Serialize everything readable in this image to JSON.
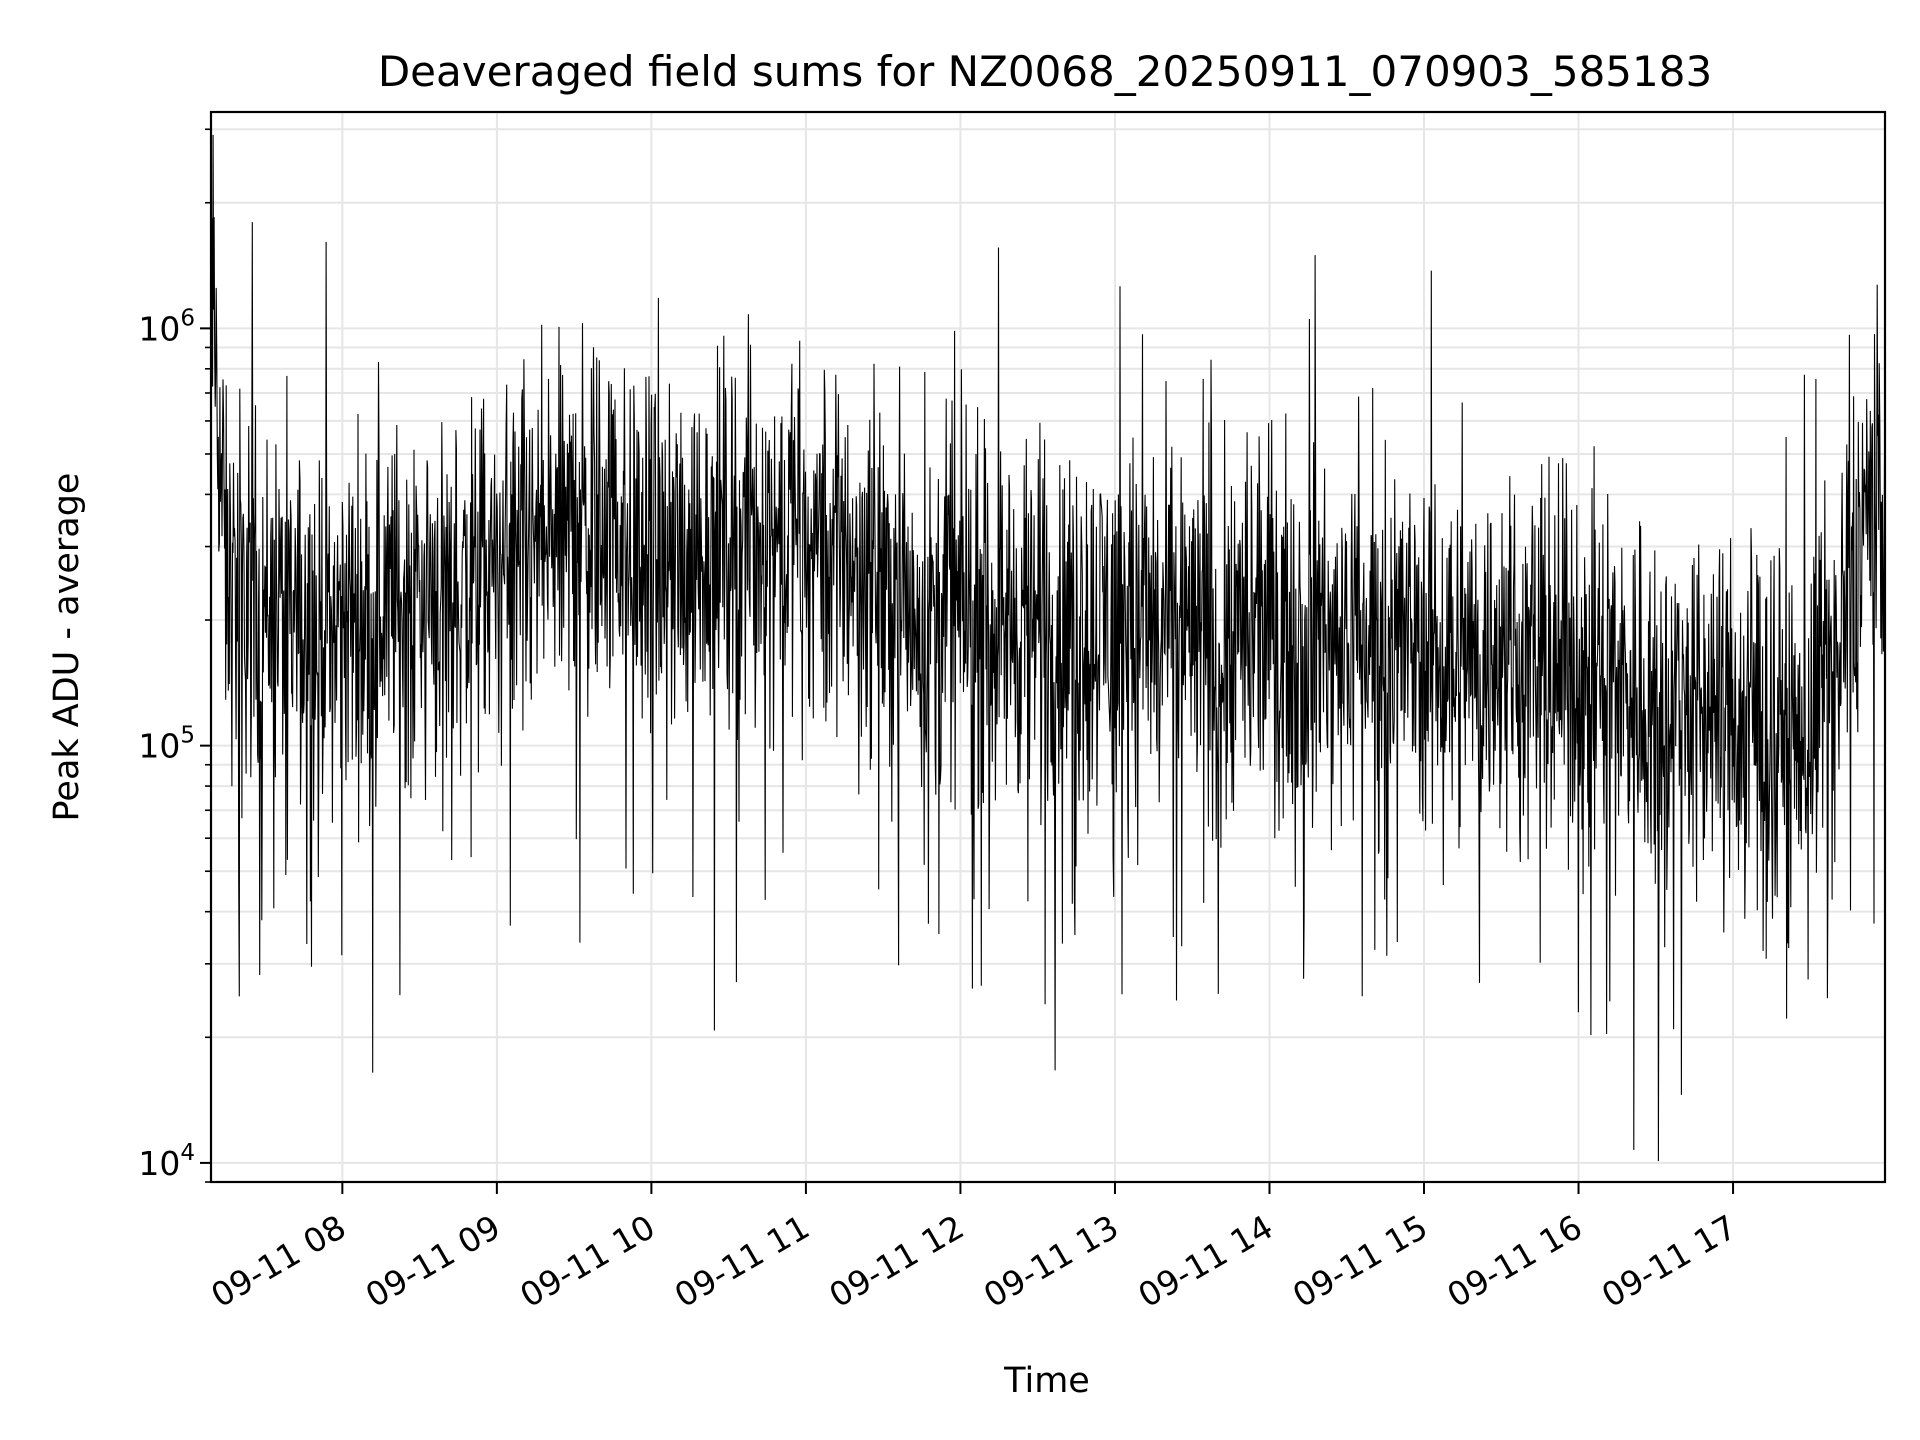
{
  "chart_data": {
    "type": "line",
    "title": "Deaveraged field sums for NZ0068_20250911_070903_585183",
    "xlabel": "Time",
    "ylabel": "Peak ADU - average",
    "yscale": "log",
    "ylim": [
      9000,
      3300000
    ],
    "xlim": [
      "2025-09-11 07:09",
      "2025-09-11 17:59"
    ],
    "grid": true,
    "line_color": "#000000",
    "grid_color": "#e6e6e6",
    "x_ticks": [
      {
        "value": "2025-09-11 08:00",
        "label": "09-11 08"
      },
      {
        "value": "2025-09-11 09:00",
        "label": "09-11 09"
      },
      {
        "value": "2025-09-11 10:00",
        "label": "09-11 10"
      },
      {
        "value": "2025-09-11 11:00",
        "label": "09-11 11"
      },
      {
        "value": "2025-09-11 12:00",
        "label": "09-11 12"
      },
      {
        "value": "2025-09-11 13:00",
        "label": "09-11 13"
      },
      {
        "value": "2025-09-11 14:00",
        "label": "09-11 14"
      },
      {
        "value": "2025-09-11 15:00",
        "label": "09-11 15"
      },
      {
        "value": "2025-09-11 16:00",
        "label": "09-11 16"
      },
      {
        "value": "2025-09-11 17:00",
        "label": "09-11 17"
      }
    ],
    "y_ticks": [
      {
        "value": 10000,
        "base": "10",
        "exp": "4"
      },
      {
        "value": 100000,
        "base": "10",
        "exp": "5"
      },
      {
        "value": 1000000,
        "base": "10",
        "exp": "6"
      }
    ],
    "series": [
      {
        "x": [
          "2025-09-11 07:09",
          "2025-09-11 07:15",
          "2025-09-11 07:30",
          "2025-09-11 07:45",
          "2025-09-11 08:00",
          "2025-09-11 08:15",
          "2025-09-11 08:30",
          "2025-09-11 08:45",
          "2025-09-11 09:00",
          "2025-09-11 09:15",
          "2025-09-11 09:30",
          "2025-09-11 09:45",
          "2025-09-11 10:00",
          "2025-09-11 10:15",
          "2025-09-11 10:30",
          "2025-09-11 10:45",
          "2025-09-11 11:00",
          "2025-09-11 11:15",
          "2025-09-11 11:30",
          "2025-09-11 11:45",
          "2025-09-11 12:00",
          "2025-09-11 12:15",
          "2025-09-11 12:30",
          "2025-09-11 12:45",
          "2025-09-11 13:00",
          "2025-09-11 13:15",
          "2025-09-11 13:30",
          "2025-09-11 13:45",
          "2025-09-11 14:00",
          "2025-09-11 14:15",
          "2025-09-11 14:30",
          "2025-09-11 14:45",
          "2025-09-11 15:00",
          "2025-09-11 15:15",
          "2025-09-11 15:30",
          "2025-09-11 15:45",
          "2025-09-11 16:00",
          "2025-09-11 16:15",
          "2025-09-11 16:30",
          "2025-09-11 16:45",
          "2025-09-11 17:00",
          "2025-09-11 17:15",
          "2025-09-11 17:30",
          "2025-09-11 17:40",
          "2025-09-11 17:50",
          "2025-09-11 17:59"
        ],
        "y": [
          1400000,
          240000,
          220000,
          190000,
          200000,
          210000,
          240000,
          230000,
          260000,
          290000,
          330000,
          340000,
          260000,
          290000,
          320000,
          330000,
          330000,
          300000,
          250000,
          210000,
          210000,
          200000,
          190000,
          190000,
          210000,
          190000,
          190000,
          180000,
          190000,
          190000,
          185000,
          180000,
          175000,
          165000,
          160000,
          160000,
          150000,
          140000,
          130000,
          125000,
          120000,
          110000,
          110000,
          180000,
          350000,
          400000
        ]
      }
    ]
  }
}
